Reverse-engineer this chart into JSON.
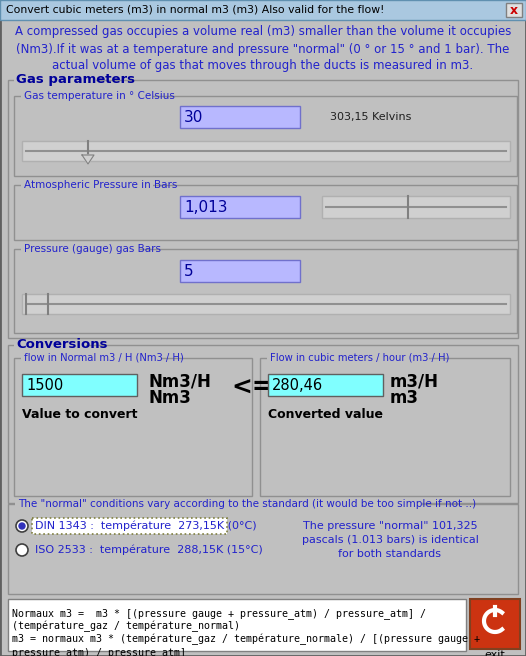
{
  "title": "Convert cubic meters (m3) in normal m3 (m3) Also valid for the flow!",
  "bg_color": "#c0c0c0",
  "title_bar_color": "#aac8e0",
  "text_blue": "#2222cc",
  "text_dark_blue": "#000099",
  "intro_line1": "A compressed gas occupies a volume real (m3) smaller than the volume it occupies",
  "intro_line2": "(Nm3).If it was at a temperature and pressure \"normal\" (0 ° or 15 ° and 1 bar). The",
  "intro_line3": "actual volume of gas that moves through the ducts is measured in m3.",
  "gas_params_label": "Gas parameters",
  "temp_label": "Gas temperature in ° Celsius",
  "temp_value": "30",
  "temp_kelvin": "303,15 Kelvins",
  "pressure_atm_label": "Atmospheric Pressure in Bars",
  "pressure_atm_value": "1,013",
  "pressure_gauge_label": "Pressure (gauge) gas Bars",
  "pressure_gauge_value": "5",
  "conversions_label": "Conversions",
  "flow_normal_label": "flow in Normal m3 / H (Nm3 / H)",
  "flow_normal_value": "1500",
  "flow_normal_unit1": "Nm3/H",
  "flow_normal_unit2": "Nm3",
  "flow_normal_sublabel": "Value to convert",
  "arrow_symbol": "<=>",
  "flow_cubic_label": "Flow in cubic meters / hour (m3 / H)",
  "flow_cubic_value": "280,46",
  "flow_cubic_unit1": "m3/H",
  "flow_cubic_unit2": "m3",
  "flow_cubic_sublabel": "Converted value",
  "normal_conditions_label": "The \"normal\" conditions vary according to the standard (it would be too simple if not ..)",
  "din_label": "DIN 1343 :  température  273,15K (0°C)",
  "iso_label": "ISO 2533 :  température  288,15K (15°C)",
  "pressure_note_line1": "The pressure \"normal\" 101,325",
  "pressure_note_line2": "pascals (1.013 bars) is identical",
  "pressure_note_line3": "for both standards",
  "formula_line1": "Normaux m3 =  m3 * [(pressure gauge + pressure_atm) / pressure_atm] /",
  "formula_line2": "(température_gaz / température_normal)",
  "formula_line3": "m3 = normaux m3 * (température_gaz / température_normale) / [(pressure gauge +",
  "formula_line4": "pressure_atm) / pressure_atm]",
  "input_bg": "#b8b8ff",
  "input_bg_cyan": "#80ffff",
  "slider_bg": "#d8d8d8",
  "exit_btn_color": "#cc2200"
}
